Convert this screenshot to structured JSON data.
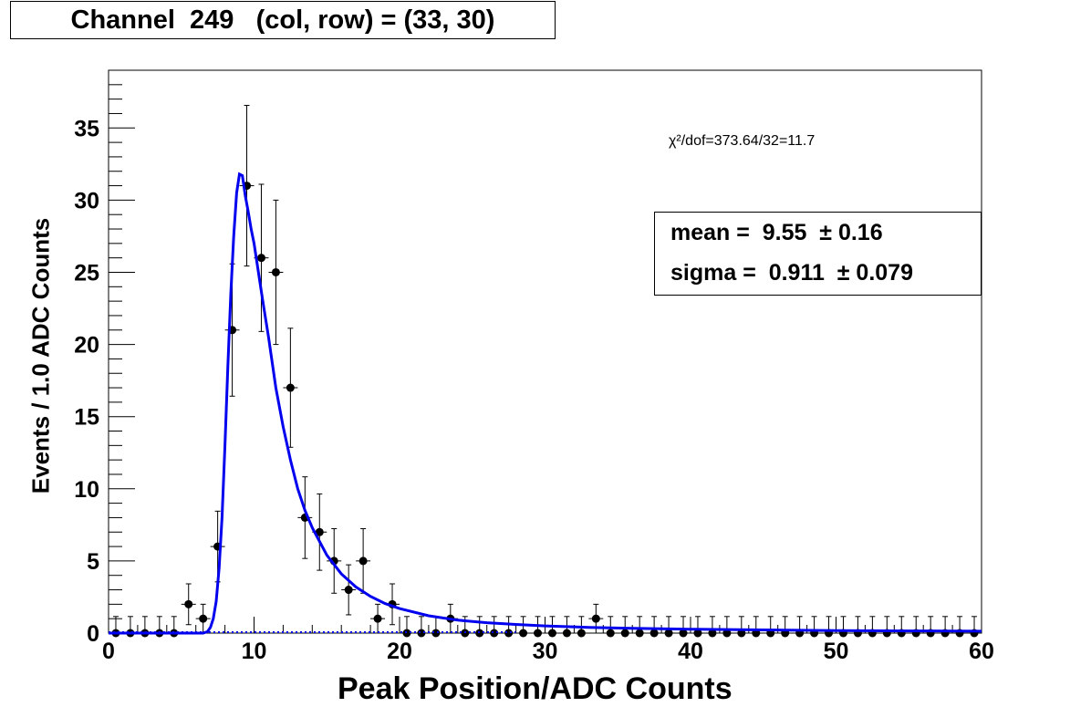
{
  "title": "Channel  249   (col, row) = (33, 30)",
  "fit": {
    "chi2_label": "χ²/dof=373.64/32=11.7",
    "mean_label": "mean =  9.55  ± 0.16",
    "sigma_label": "sigma =  0.911  ± 0.079"
  },
  "chart_data": {
    "type": "scatter",
    "xlabel": "Peak Position/ADC Counts",
    "ylabel": "Events / 1.0 ADC Counts",
    "xlim": [
      0,
      60
    ],
    "ylim": [
      0,
      39
    ],
    "x_ticks": [
      0,
      10,
      20,
      30,
      40,
      50,
      60
    ],
    "y_ticks": [
      0,
      5,
      10,
      15,
      20,
      25,
      30,
      35
    ],
    "grid": false,
    "series": [
      {
        "x": [
          0.5,
          1.5,
          2.5,
          3.5,
          4.5,
          5.5,
          6.5,
          7.5,
          8.5,
          9.5,
          10.5,
          11.5,
          12.5,
          13.5,
          14.5,
          15.5,
          16.5,
          17.5,
          18.5,
          19.5,
          20.5,
          21.5,
          22.5,
          23.5,
          24.5,
          25.5,
          26.5,
          27.5,
          28.5,
          29.5,
          30.5,
          31.5,
          32.5,
          33.5,
          34.5,
          35.5,
          36.5,
          37.5,
          38.5,
          39.5,
          40.5,
          41.5,
          42.5,
          43.5,
          44.5,
          45.5,
          46.5,
          47.5,
          48.5,
          49.5,
          50.5,
          51.5,
          52.5,
          53.5,
          54.5,
          55.5,
          56.5,
          57.5,
          58.5,
          59.5
        ],
        "y": [
          0,
          0,
          0,
          0,
          0,
          2,
          1,
          6,
          21,
          31,
          26,
          25,
          17,
          8,
          7,
          5,
          3,
          5,
          1,
          2,
          0,
          0,
          0,
          1,
          0,
          0,
          0,
          0,
          0,
          0,
          0,
          0,
          0,
          1,
          0,
          0,
          0,
          0,
          0,
          0,
          0,
          0,
          0,
          0,
          0,
          0,
          0,
          0,
          0,
          0,
          0,
          0,
          0,
          0,
          0,
          0,
          0,
          0,
          0,
          0
        ],
        "color": "#000000"
      },
      {
        "type": "line",
        "x": [
          0,
          6.5,
          6.8,
          7.0,
          7.2,
          7.4,
          7.6,
          7.8,
          8.0,
          8.2,
          8.4,
          8.6,
          8.8,
          9.0,
          9.2,
          9.4,
          9.6,
          9.8,
          10.0,
          10.3,
          10.6,
          11.0,
          11.5,
          12.0,
          12.5,
          13.0,
          13.5,
          14.0,
          15.0,
          16.0,
          17.0,
          18.0,
          19.0,
          20.0,
          22.0,
          24.0,
          26.0,
          28.0,
          30.0,
          33.0,
          36.0,
          40.0,
          45.0,
          50.0,
          55.0,
          60.0
        ],
        "y": [
          0,
          0,
          0.1,
          0.4,
          1.0,
          2.2,
          4.5,
          8.0,
          13.0,
          18.5,
          23.5,
          27.5,
          30.5,
          31.8,
          31.7,
          30.3,
          29.2,
          28.0,
          27.0,
          25.0,
          23.0,
          20.5,
          17.0,
          14.3,
          12.0,
          10.0,
          8.5,
          7.3,
          5.4,
          4.1,
          3.2,
          2.55,
          2.05,
          1.7,
          1.2,
          0.9,
          0.72,
          0.6,
          0.5,
          0.4,
          0.33,
          0.27,
          0.22,
          0.18,
          0.15,
          0.13
        ],
        "color": "#0000ee"
      }
    ]
  }
}
